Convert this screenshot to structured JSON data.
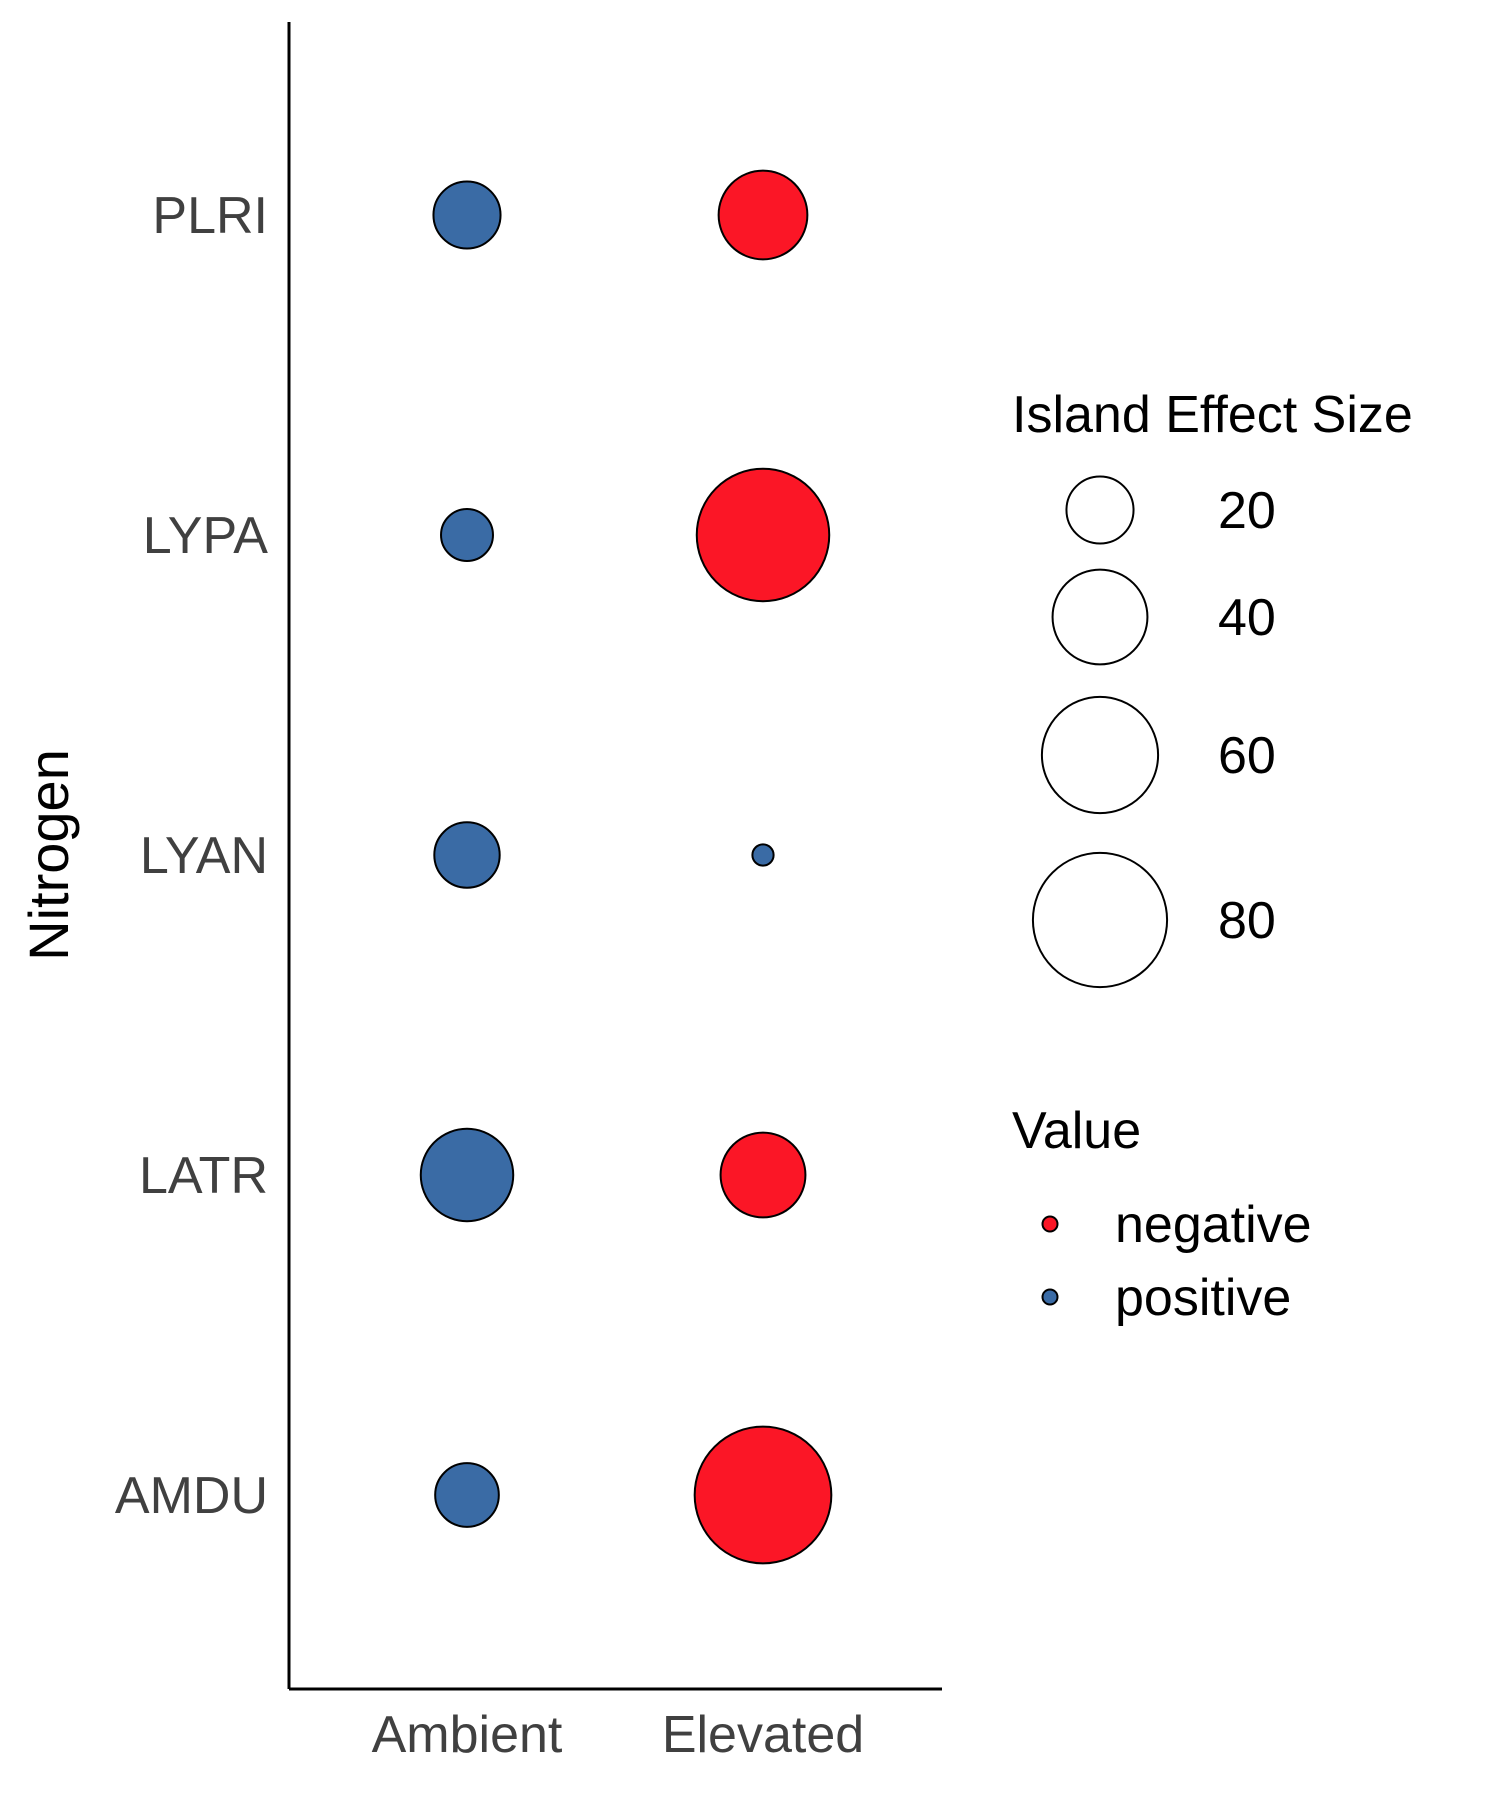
{
  "chart_data": {
    "type": "scatter",
    "subtype": "bubble",
    "title": "",
    "xlabel": "",
    "ylabel": "Nitrogen",
    "x_categories": [
      "Ambient",
      "Elevated"
    ],
    "y_categories": [
      "AMDU",
      "LATR",
      "LYAN",
      "LYPA",
      "PLRI"
    ],
    "points": [
      {
        "species": "PLRI",
        "nitrogen": "Ambient",
        "size": 20,
        "value": "positive"
      },
      {
        "species": "PLRI",
        "nitrogen": "Elevated",
        "size": 35,
        "value": "negative"
      },
      {
        "species": "LYPA",
        "nitrogen": "Ambient",
        "size": 12,
        "value": "positive"
      },
      {
        "species": "LYPA",
        "nitrogen": "Elevated",
        "size": 78,
        "value": "negative"
      },
      {
        "species": "LYAN",
        "nitrogen": "Ambient",
        "size": 19,
        "value": "positive"
      },
      {
        "species": "LYAN",
        "nitrogen": "Elevated",
        "size": 2,
        "value": "positive"
      },
      {
        "species": "LATR",
        "nitrogen": "Ambient",
        "size": 38,
        "value": "positive"
      },
      {
        "species": "LATR",
        "nitrogen": "Elevated",
        "size": 32,
        "value": "negative"
      },
      {
        "species": "AMDU",
        "nitrogen": "Ambient",
        "size": 18,
        "value": "positive"
      },
      {
        "species": "AMDU",
        "nitrogen": "Elevated",
        "size": 83,
        "value": "negative"
      }
    ],
    "size_legend": {
      "title": "Island Effect Size",
      "breaks": [
        20,
        40,
        60,
        80
      ]
    },
    "color_legend": {
      "title": "Value",
      "entries": [
        {
          "label": "negative",
          "color": "#FB1626"
        },
        {
          "label": "positive",
          "color": "#3A6BA5"
        }
      ]
    },
    "grid": false,
    "legend_position": "right"
  }
}
